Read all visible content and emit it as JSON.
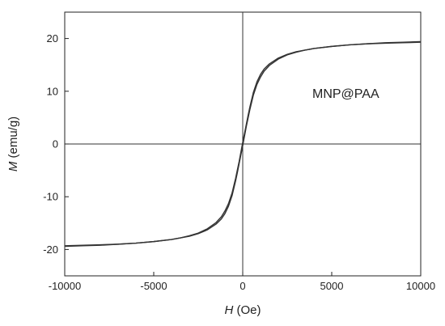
{
  "chart_data": {
    "type": "line",
    "title": "",
    "xlabel": {
      "symbol": "H",
      "unit": " (Oe)"
    },
    "ylabel": {
      "symbol": "M",
      "unit": " (emu/g)"
    },
    "xlim": [
      -10000,
      10000
    ],
    "ylim": [
      -25,
      25
    ],
    "xticks": [
      -10000,
      -5000,
      0,
      5000,
      10000
    ],
    "xtick_labels": [
      "-10000",
      "-5000",
      "0",
      "5000",
      "10000"
    ],
    "yticks": [
      -20,
      -10,
      0,
      10,
      20
    ],
    "ytick_labels": [
      "-20",
      "-10",
      "0",
      "10",
      "20"
    ],
    "grid": false,
    "zero_lines": true,
    "annotation": "MNP@PAA",
    "line_color": "#333333",
    "series": [
      {
        "branch": "ascending",
        "x": [
          -10000,
          -9000,
          -8000,
          -7000,
          -6000,
          -5000,
          -4000,
          -3500,
          -3000,
          -2500,
          -2000,
          -1500,
          -1200,
          -1000,
          -800,
          -600,
          -400,
          -300,
          -200,
          -100,
          0,
          50,
          100,
          200,
          300,
          400,
          600,
          800,
          1000,
          1200,
          1500,
          2000,
          2500,
          3000,
          3500,
          4000,
          5000,
          6000,
          7000,
          8000,
          9000,
          10000
        ],
        "y": [
          -19.4,
          -19.3,
          -19.2,
          -19.0,
          -18.8,
          -18.5,
          -18.1,
          -17.8,
          -17.5,
          -17.0,
          -16.3,
          -15.2,
          -14.2,
          -13.2,
          -11.8,
          -9.8,
          -7.0,
          -5.4,
          -3.7,
          -2.0,
          -0.3,
          0.6,
          1.5,
          3.3,
          4.9,
          6.5,
          9.3,
          11.3,
          12.7,
          13.8,
          14.9,
          16.1,
          16.9,
          17.4,
          17.8,
          18.1,
          18.5,
          18.8,
          19.0,
          19.1,
          19.2,
          19.3
        ]
      },
      {
        "branch": "descending",
        "x": [
          10000,
          9000,
          8000,
          7000,
          6000,
          5000,
          4000,
          3500,
          3000,
          2500,
          2000,
          1500,
          1200,
          1000,
          800,
          600,
          400,
          300,
          200,
          100,
          0,
          -50,
          -100,
          -200,
          -300,
          -400,
          -600,
          -800,
          -1000,
          -1200,
          -1500,
          -2000,
          -2500,
          -3000,
          -3500,
          -4000,
          -5000,
          -6000,
          -7000,
          -8000,
          -9000,
          -10000
        ],
        "y": [
          19.4,
          19.3,
          19.2,
          19.0,
          18.8,
          18.5,
          18.1,
          17.8,
          17.5,
          17.0,
          16.3,
          15.2,
          14.2,
          13.2,
          11.8,
          9.8,
          7.0,
          5.4,
          3.7,
          2.0,
          0.3,
          -0.6,
          -1.5,
          -3.3,
          -4.9,
          -6.5,
          -9.3,
          -11.3,
          -12.7,
          -13.8,
          -14.9,
          -16.1,
          -16.9,
          -17.4,
          -17.8,
          -18.1,
          -18.5,
          -18.8,
          -19.0,
          -19.1,
          -19.2,
          -19.3
        ]
      }
    ]
  }
}
